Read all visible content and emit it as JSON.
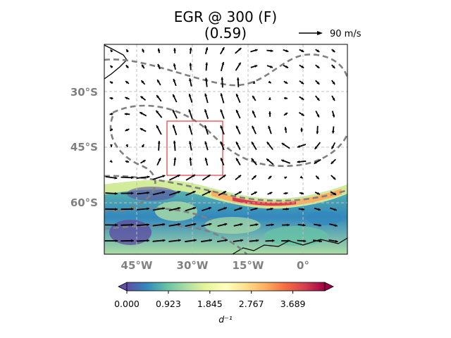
{
  "title": {
    "line1": "EGR @ 300 (F)",
    "line2": "(0.59)"
  },
  "quiver_key": {
    "label": "90 m/s"
  },
  "map": {
    "lat_labels": [
      "30°S",
      "45°S",
      "60°S"
    ],
    "lon_labels": [
      "45°W",
      "30°W",
      "15°W",
      "0°"
    ],
    "grid": "dashed light gray",
    "highlight_box_color": "#e8383d",
    "contour_color": "#808080"
  },
  "colorbar": {
    "colormap": "Spectral_r",
    "ticks": [
      "0.000",
      "0.923",
      "1.845",
      "2.767",
      "3.689"
    ],
    "unit": "d⁻¹",
    "min": 0,
    "max": 4.4,
    "extend": "both"
  }
}
